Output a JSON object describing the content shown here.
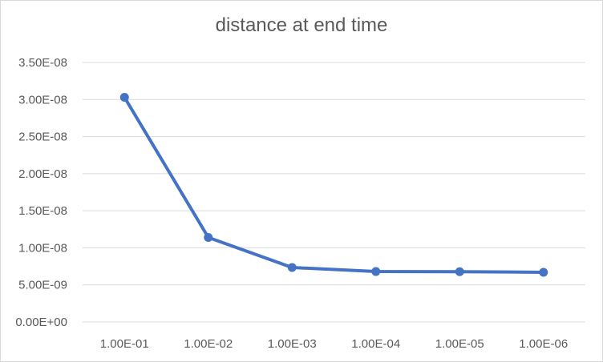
{
  "chart_data": {
    "type": "line",
    "title": "distance at end time",
    "xlabel": "",
    "ylabel": "",
    "categories": [
      "1.00E-01",
      "1.00E-02",
      "1.00E-03",
      "1.00E-04",
      "1.00E-05",
      "1.00E-06"
    ],
    "series": [
      {
        "values": [
          3.03e-08,
          1.14e-08,
          7.35e-09,
          6.8e-09,
          6.78e-09,
          6.7e-09
        ]
      }
    ],
    "ylim": [
      0,
      3.5e-08
    ],
    "yticks": [
      "0.00E+00",
      "5.00E-09",
      "1.00E-08",
      "1.50E-08",
      "2.00E-08",
      "2.50E-08",
      "3.00E-08",
      "3.50E-08"
    ],
    "grid": "horizontal",
    "legend": "none",
    "colors": {
      "line": "#4472c4",
      "grid": "#d9d9d9",
      "text": "#595959"
    }
  }
}
